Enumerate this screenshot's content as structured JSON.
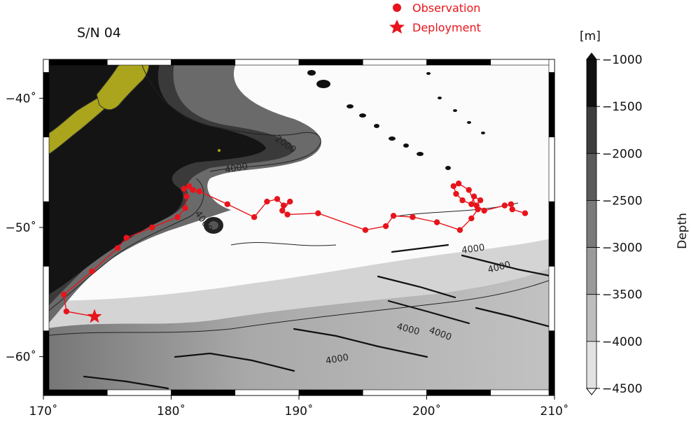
{
  "figure": {
    "title": "S/N 04",
    "legend": [
      {
        "label": "Observation",
        "marker": "circle",
        "color": "#e8141b"
      },
      {
        "label": "Deployment",
        "marker": "star",
        "color": "#e8141b"
      }
    ]
  },
  "map": {
    "lon_range": [
      170,
      210
    ],
    "lat_range": [
      -63,
      -37
    ],
    "x_ticks": [
      {
        "v": 170,
        "label": "170˚"
      },
      {
        "v": 180,
        "label": "180˚"
      },
      {
        "v": 190,
        "label": "190˚"
      },
      {
        "v": 200,
        "label": "200˚"
      },
      {
        "v": 210,
        "label": "210˚"
      }
    ],
    "y_ticks": [
      {
        "v": -40,
        "label": "−40˚"
      },
      {
        "v": -50,
        "label": "−50˚"
      },
      {
        "v": -60,
        "label": "−60˚"
      }
    ],
    "contour_labels": [
      "2000",
      "4000",
      "4000",
      "4000",
      "4000",
      "4000",
      "4000",
      "4000"
    ],
    "land_color": "#aaa51c",
    "track_color": "#e8141b"
  },
  "colorbar": {
    "unit": "[m]",
    "label": "Depth",
    "levels": [
      -1000,
      -1500,
      -2000,
      -2500,
      -3000,
      -3500,
      -4000,
      -4500
    ],
    "tick_labels": [
      "−1000",
      "−1500",
      "−2000",
      "−2500",
      "−3000",
      "−3500",
      "−4000",
      "−4500"
    ],
    "colors": [
      "#111111",
      "#3d3d3d",
      "#5a5a5a",
      "#7a7a7a",
      "#9a9a9a",
      "#bdbdbd",
      "#e2e2e2"
    ]
  },
  "chart_data": {
    "type": "scatter",
    "x_unit": "degrees longitude",
    "y_unit": "degrees latitude",
    "deployment": {
      "lon": 174.0,
      "lat": -56.9
    },
    "series": [
      {
        "name": "Observation",
        "points": [
          [
            171.8,
            -56.5
          ],
          [
            171.6,
            -55.2
          ],
          [
            173.8,
            -53.4
          ],
          [
            175.8,
            -51.6
          ],
          [
            176.5,
            -50.8
          ],
          [
            178.5,
            -50.0
          ],
          [
            180.5,
            -49.2
          ],
          [
            181.1,
            -48.5
          ],
          [
            181.2,
            -47.6
          ],
          [
            181.0,
            -47.0
          ],
          [
            181.4,
            -46.8
          ],
          [
            181.7,
            -47.1
          ],
          [
            182.2,
            -47.2
          ],
          [
            184.4,
            -48.2
          ],
          [
            186.5,
            -49.2
          ],
          [
            187.5,
            -48.0
          ],
          [
            188.3,
            -47.8
          ],
          [
            188.8,
            -48.3
          ],
          [
            189.3,
            -48.0
          ],
          [
            188.7,
            -48.7
          ],
          [
            189.1,
            -49.0
          ],
          [
            191.5,
            -48.9
          ],
          [
            195.2,
            -50.2
          ],
          [
            196.8,
            -49.9
          ],
          [
            197.4,
            -49.1
          ],
          [
            198.9,
            -49.2
          ],
          [
            200.8,
            -49.6
          ],
          [
            202.6,
            -50.2
          ],
          [
            203.5,
            -49.3
          ],
          [
            204.0,
            -48.6
          ],
          [
            203.3,
            -47.1
          ],
          [
            202.5,
            -46.6
          ],
          [
            202.1,
            -46.8
          ],
          [
            202.3,
            -47.4
          ],
          [
            202.8,
            -47.9
          ],
          [
            203.5,
            -48.2
          ],
          [
            203.7,
            -47.6
          ],
          [
            204.2,
            -47.9
          ],
          [
            203.9,
            -48.3
          ],
          [
            204.5,
            -48.7
          ],
          [
            206.1,
            -48.3
          ],
          [
            206.6,
            -48.2
          ],
          [
            206.7,
            -48.6
          ],
          [
            207.7,
            -48.9
          ]
        ]
      }
    ]
  }
}
